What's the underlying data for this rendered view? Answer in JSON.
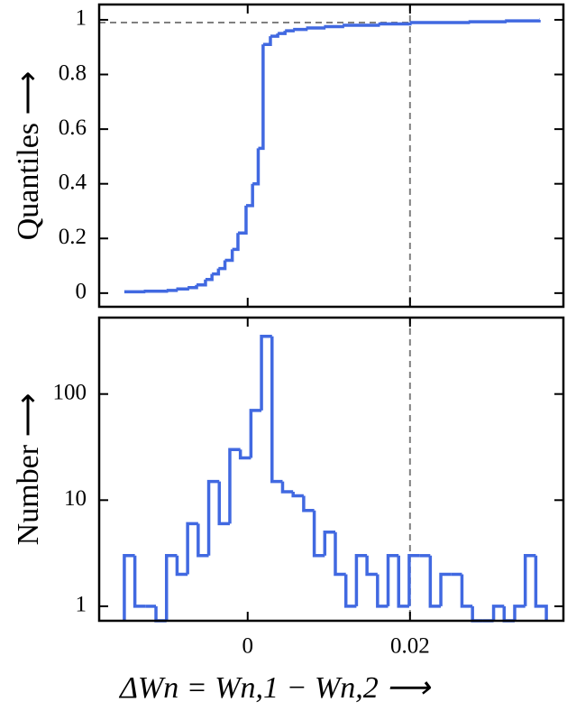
{
  "chart_data": [
    {
      "type": "line",
      "drawstyle": "steps",
      "ylabel": "Quantiles ⟶",
      "x": [
        -0.0152,
        -0.0128,
        -0.01,
        -0.0088,
        -0.0074,
        -0.0063,
        -0.0052,
        -0.0044,
        -0.0036,
        -0.0028,
        -0.0019,
        -0.0012,
        -0.0002,
        0.0006,
        0.0013,
        0.0019,
        0.0028,
        0.0037,
        0.0046,
        0.0056,
        0.0072,
        0.0094,
        0.0117,
        0.0161,
        0.02,
        0.0272,
        0.0317,
        0.0359
      ],
      "values": [
        0.005,
        0.007,
        0.01,
        0.015,
        0.02,
        0.03,
        0.05,
        0.07,
        0.09,
        0.12,
        0.16,
        0.22,
        0.32,
        0.4,
        0.53,
        0.91,
        0.94,
        0.95,
        0.96,
        0.965,
        0.97,
        0.975,
        0.98,
        0.985,
        0.99,
        0.993,
        0.996,
        1.0
      ],
      "color": "#4169e1",
      "xlim": [
        -0.0183,
        0.0389
      ],
      "ylim": [
        -0.05,
        1.056
      ],
      "yticks": [
        0,
        0.2,
        0.4,
        0.6,
        0.8,
        1
      ],
      "xticks": [
        0,
        0.02
      ],
      "show_xticklabels": false,
      "vline": 0.02,
      "hline": 0.99,
      "ref_color": "#808080"
    },
    {
      "type": "histogram",
      "ylabel": "Number ⟶",
      "xlabel": "ΔWn = Wn,1 − Wn,2 ⟶",
      "bins": [
        -0.0152,
        -0.0139,
        -0.0126,
        -0.0113,
        -0.01,
        -0.0087,
        -0.0074,
        -0.0061,
        -0.0048,
        -0.0035,
        -0.0022,
        -0.0009,
        0.0004,
        0.0017,
        0.003,
        0.0043,
        0.0056,
        0.0069,
        0.0082,
        0.0095,
        0.0108,
        0.0121,
        0.0134,
        0.0147,
        0.016,
        0.0173,
        0.0186,
        0.0199,
        0.0212,
        0.0225,
        0.0238,
        0.0251,
        0.0264,
        0.0277,
        0.029,
        0.0303,
        0.0316,
        0.0329,
        0.0342,
        0.0355,
        0.0368
      ],
      "values": [
        3,
        1,
        1,
        0,
        3,
        2,
        6,
        3,
        15,
        6,
        30,
        25,
        70,
        350,
        15,
        12,
        11,
        8,
        3,
        5,
        2,
        1,
        3,
        2,
        1,
        3,
        1,
        3,
        3,
        1,
        2,
        2,
        1,
        0,
        0,
        1,
        0,
        1,
        3,
        1
      ],
      "color": "#4169e1",
      "xlim": [
        -0.0183,
        0.0389
      ],
      "ylim": [
        0.73,
        525
      ],
      "log_y": true,
      "yticks": [
        1,
        10,
        100
      ],
      "xticks": [
        0,
        0.02
      ],
      "vline": 0.02,
      "ref_color": "#808080"
    }
  ]
}
